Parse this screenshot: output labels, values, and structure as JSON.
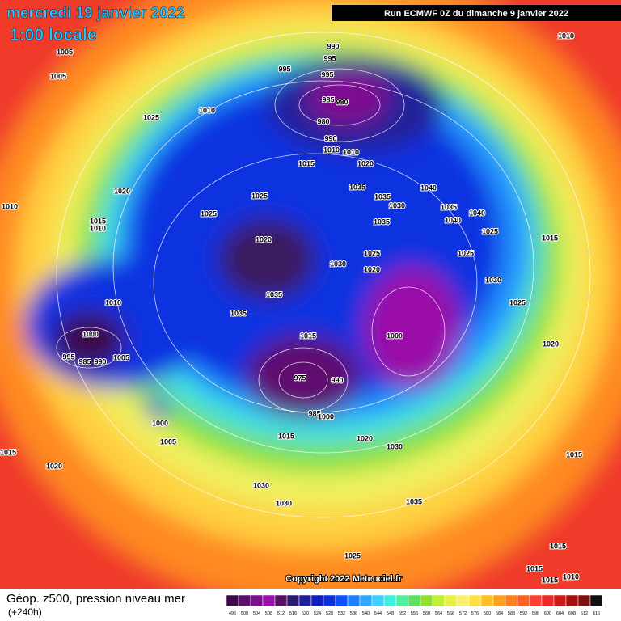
{
  "header": {
    "date": "mercredi 19 janvier 2022",
    "time": "1:00 locale",
    "run": "Run ECMWF 0Z du dimanche 9 janvier 2022"
  },
  "footer": {
    "field": "Géop. z500, pression niveau mer",
    "step": "(+240h)",
    "copyright": "Copyright 2022 Meteociel.fr"
  },
  "legend": {
    "values": [
      "496",
      "500",
      "504",
      "508",
      "512",
      "516",
      "520",
      "524",
      "528",
      "532",
      "536",
      "540",
      "544",
      "548",
      "552",
      "556",
      "560",
      "564",
      "568",
      "572",
      "576",
      "580",
      "584",
      "588",
      "592",
      "596",
      "600",
      "604",
      "608",
      "612",
      "616"
    ],
    "colors": [
      "#3c0a4a",
      "#5e0f6e",
      "#7e1090",
      "#9a10a8",
      "#5a1060",
      "#2a1a70",
      "#20209a",
      "#1020c0",
      "#0a30e0",
      "#1050ff",
      "#2080ff",
      "#30a8ff",
      "#40d0ff",
      "#40f0e0",
      "#50f0a0",
      "#60e060",
      "#90e030",
      "#c0f030",
      "#e8f040",
      "#f8f070",
      "#ffe040",
      "#ffc020",
      "#ffa020",
      "#ff8020",
      "#ff6020",
      "#ff4030",
      "#f02828",
      "#d01818",
      "#a81010",
      "#801010",
      "#101010"
    ]
  },
  "pressure_labels": [
    "1010",
    "1005",
    "1005",
    "990",
    "995",
    "995",
    "995",
    "985",
    "980",
    "1010",
    "1025",
    "980",
    "990",
    "1010",
    "1010",
    "1015",
    "1020",
    "1035",
    "1040",
    "1020",
    "1025",
    "1035",
    "1030",
    "1035",
    "1010",
    "1025",
    "1015",
    "1010",
    "1035",
    "1040",
    "1040",
    "1025",
    "1020",
    "1015",
    "1025",
    "1025",
    "1030",
    "1020",
    "1030",
    "1010",
    "1035",
    "1035",
    "1025",
    "1000",
    "1015",
    "1000",
    "1020",
    "995",
    "985",
    "990",
    "1005",
    "975",
    "990",
    "1000",
    "985",
    "1000",
    "1005",
    "1015",
    "1020",
    "1030",
    "1015",
    "1015",
    "1020",
    "1030",
    "1030",
    "1035",
    "1025",
    "1015",
    "1015",
    "1010",
    "1015"
  ]
}
